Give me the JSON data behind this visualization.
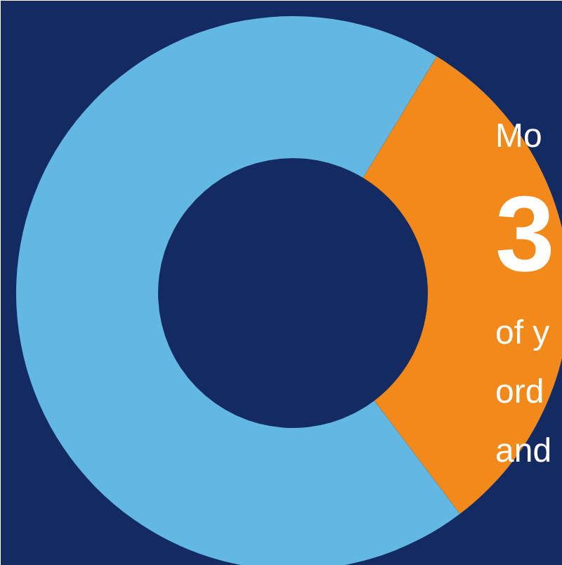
{
  "chart_data": {
    "type": "donut",
    "categories": [
      null,
      null
    ],
    "values": [
      31,
      69
    ],
    "colors": [
      "#f18a1a",
      "#63b8e3"
    ],
    "annotations": [
      "Mo",
      "3",
      "of y",
      "ord",
      "and"
    ]
  }
}
